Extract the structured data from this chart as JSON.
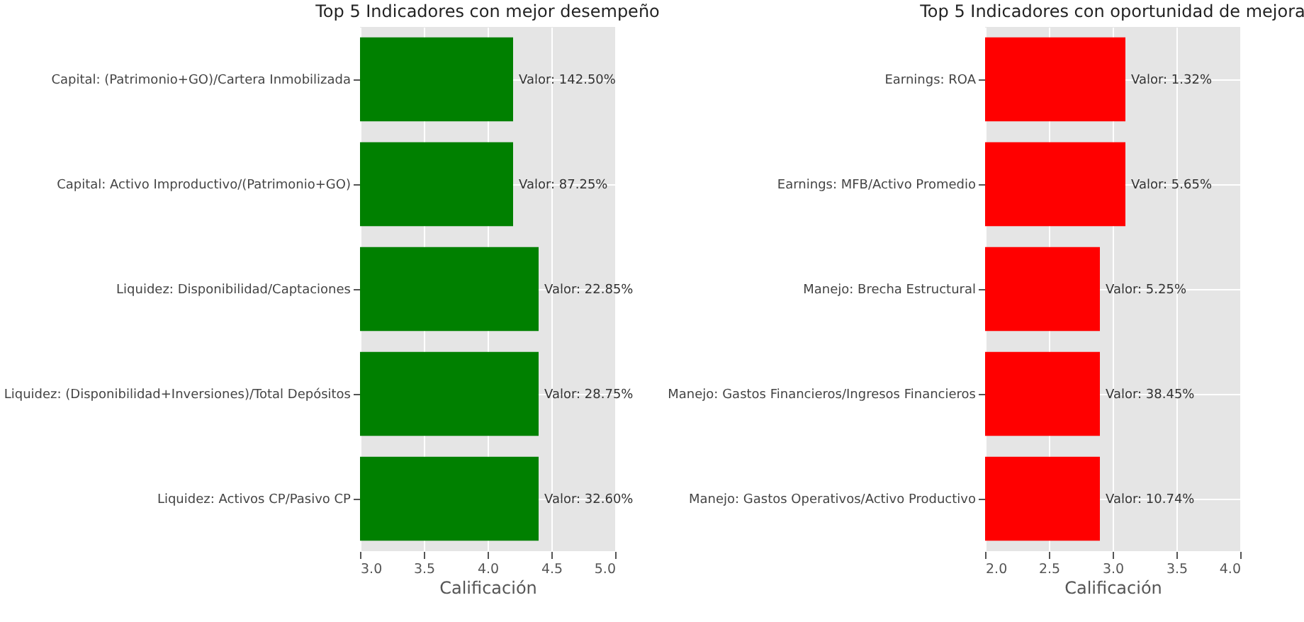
{
  "chart_data": [
    {
      "type": "bar",
      "orientation": "horizontal",
      "title": "Top 5 Indicadores con mejor desempeño",
      "xlabel": "Calificación",
      "categories": [
        "Capital: (Patrimonio+GO)/Cartera Inmobilizada",
        "Capital: Activo Improductivo/(Patrimonio+GO)",
        "Liquidez: Disponibilidad/Captaciones",
        "Liquidez: (Disponibilidad+Inversiones)/Total Depósitos",
        "Liquidez: Activos CP/Pasivo CP"
      ],
      "values": [
        4.2,
        4.2,
        4.4,
        4.4,
        4.4
      ],
      "color": "#008000",
      "xlim": [
        3.0,
        5.0
      ],
      "xticks": [
        {
          "value": 3,
          "label": "3.0"
        },
        {
          "value": 3.5,
          "label": "3.5"
        },
        {
          "value": 4,
          "label": "4.0"
        },
        {
          "value": 4.5,
          "label": "4.5"
        },
        {
          "value": 5,
          "label": "5.0"
        }
      ],
      "grid": true,
      "annotations": [
        {
          "text": "Valor: 142.50%",
          "x": 4.2,
          "y": "Capital: (Patrimonio+GO)/Cartera Inmobilizada"
        },
        {
          "text": "Valor: 87.25%",
          "x": 4.2,
          "y": "Capital: Activo Improductivo/(Patrimonio+GO)"
        },
        {
          "text": "Valor: 22.85%",
          "x": 4.4,
          "y": "Liquidez: Disponibilidad/Captaciones"
        },
        {
          "text": "Valor: 28.75%",
          "x": 4.4,
          "y": "Liquidez: (Disponibilidad+Inversiones)/Total Depósitos"
        },
        {
          "text": "Valor: 32.60%",
          "x": 4.4,
          "y": "Liquidez: Activos CP/Pasivo CP"
        }
      ]
    },
    {
      "type": "bar",
      "orientation": "horizontal",
      "title": "Top 5 Indicadores con oportunidad de mejora",
      "xlabel": "Calificación",
      "categories": [
        "Earnings: ROA",
        "Earnings: MFB/Activo Promedio",
        "Manejo: Brecha Estructural",
        "Manejo: Gastos Financieros/Ingresos Financieros",
        "Manejo: Gastos Operativos/Activo Productivo"
      ],
      "values": [
        3.1,
        3.1,
        2.9,
        2.9,
        2.9
      ],
      "color": "#ff0000",
      "xlim": [
        2.0,
        4.0
      ],
      "xticks": [
        {
          "value": 2,
          "label": "2.0"
        },
        {
          "value": 2.5,
          "label": "2.5"
        },
        {
          "value": 3,
          "label": "3.0"
        },
        {
          "value": 3.5,
          "label": "3.5"
        },
        {
          "value": 4,
          "label": "4.0"
        }
      ],
      "grid": true,
      "annotations": [
        {
          "text": "Valor: 1.32%",
          "x": 3.1,
          "y": "Earnings: ROA"
        },
        {
          "text": "Valor: 5.65%",
          "x": 3.1,
          "y": "Earnings: MFB/Activo Promedio"
        },
        {
          "text": "Valor: 5.25%",
          "x": 2.9,
          "y": "Manejo: Brecha Estructural"
        },
        {
          "text": "Valor: 38.45%",
          "x": 2.9,
          "y": "Manejo: Gastos Financieros/Ingresos Financieros"
        },
        {
          "text": "Valor: 10.74%",
          "x": 2.9,
          "y": "Manejo: Gastos Operativos/Activo Productivo"
        }
      ]
    }
  ]
}
